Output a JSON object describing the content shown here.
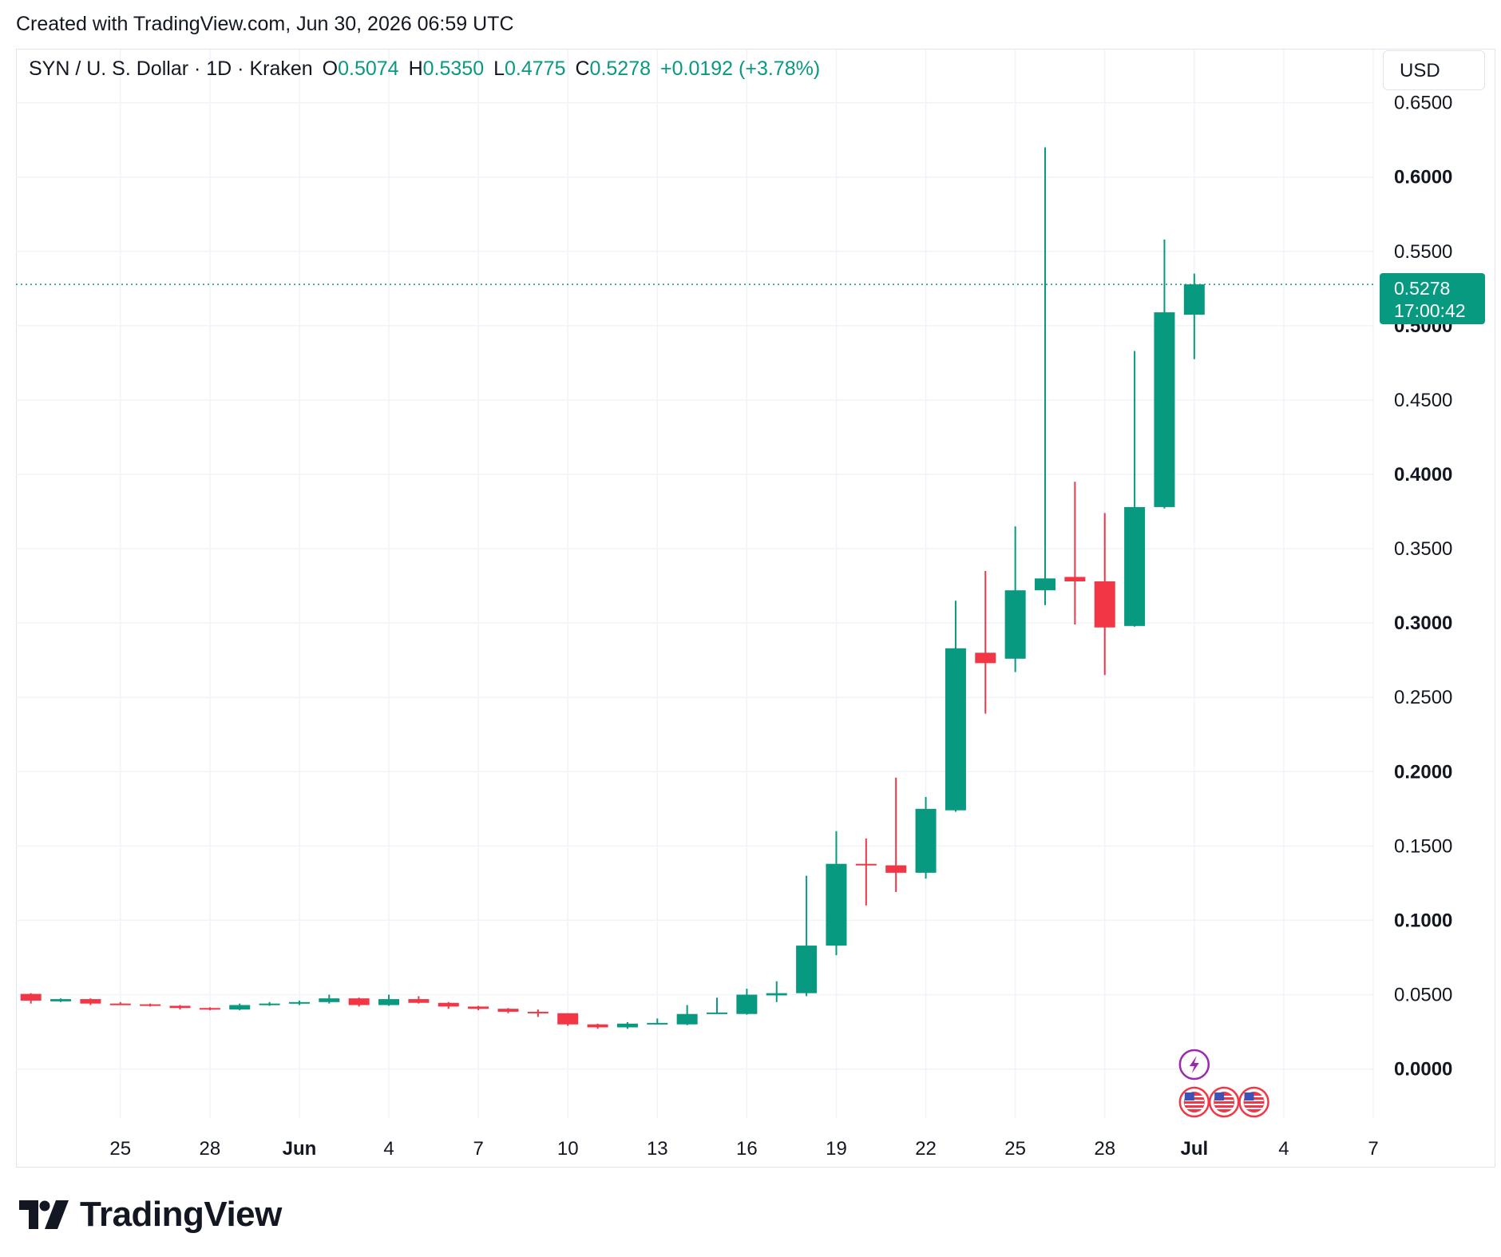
{
  "header": {
    "credit": "Created with TradingView.com, Jun 30, 2026 06:59 UTC"
  },
  "legend": {
    "symbol": "SYN / U. S. Dollar · 1D · Kraken",
    "open_label": "O",
    "open": "0.5074",
    "high_label": "H",
    "high": "0.5350",
    "low_label": "L",
    "low": "0.4775",
    "close_label": "C",
    "close": "0.5278",
    "change": "+0.0192 (+3.78%)"
  },
  "currency_button": {
    "label": "USD"
  },
  "price_tag": {
    "price": "0.5278",
    "countdown": "17:00:42"
  },
  "logo": {
    "text": "TradingView"
  },
  "colors": {
    "up": "#089981",
    "down": "#f23645",
    "grid": "#f0f3fa",
    "text": "#131722"
  },
  "chart_data": {
    "type": "candlestick",
    "x_axis": {
      "ticks": [
        {
          "day": 25,
          "label": "25",
          "bold": false
        },
        {
          "day": 28,
          "label": "28",
          "bold": false
        },
        {
          "day": 31,
          "label": "Jun",
          "bold": true
        },
        {
          "day": 34,
          "label": "4",
          "bold": false
        },
        {
          "day": 37,
          "label": "7",
          "bold": false
        },
        {
          "day": 40,
          "label": "10",
          "bold": false
        },
        {
          "day": 43,
          "label": "13",
          "bold": false
        },
        {
          "day": 46,
          "label": "16",
          "bold": false
        },
        {
          "day": 49,
          "label": "19",
          "bold": false
        },
        {
          "day": 52,
          "label": "22",
          "bold": false
        },
        {
          "day": 55,
          "label": "25",
          "bold": false
        },
        {
          "day": 58,
          "label": "28",
          "bold": false
        },
        {
          "day": 61,
          "label": "Jul",
          "bold": true
        },
        {
          "day": 64,
          "label": "4",
          "bold": false
        },
        {
          "day": 67,
          "label": "7",
          "bold": false
        }
      ],
      "range": [
        21.5,
        67
      ]
    },
    "y_axis": {
      "ticks": [
        {
          "value": 0.65,
          "label": "0.6500",
          "bold": false
        },
        {
          "value": 0.6,
          "label": "0.6000",
          "bold": true
        },
        {
          "value": 0.55,
          "label": "0.5500",
          "bold": false
        },
        {
          "value": 0.5,
          "label": "0.5000",
          "bold": true
        },
        {
          "value": 0.45,
          "label": "0.4500",
          "bold": false
        },
        {
          "value": 0.4,
          "label": "0.4000",
          "bold": true
        },
        {
          "value": 0.35,
          "label": "0.3500",
          "bold": false
        },
        {
          "value": 0.3,
          "label": "0.3000",
          "bold": true
        },
        {
          "value": 0.25,
          "label": "0.2500",
          "bold": false
        },
        {
          "value": 0.2,
          "label": "0.2000",
          "bold": true
        },
        {
          "value": 0.15,
          "label": "0.1500",
          "bold": false
        },
        {
          "value": 0.1,
          "label": "0.1000",
          "bold": true
        },
        {
          "value": 0.05,
          "label": "0.0500",
          "bold": false
        },
        {
          "value": 0.0,
          "label": "0.0000",
          "bold": true
        }
      ],
      "range": [
        -0.033,
        0.66
      ]
    },
    "grid": true,
    "last_price": 0.5278,
    "candles": [
      {
        "day": 22,
        "o": 0.0505,
        "h": 0.051,
        "l": 0.044,
        "c": 0.046
      },
      {
        "day": 23,
        "o": 0.0455,
        "h": 0.0475,
        "l": 0.045,
        "c": 0.047
      },
      {
        "day": 24,
        "o": 0.047,
        "h": 0.0475,
        "l": 0.043,
        "c": 0.044
      },
      {
        "day": 25,
        "o": 0.044,
        "h": 0.045,
        "l": 0.043,
        "c": 0.0435
      },
      {
        "day": 26,
        "o": 0.0435,
        "h": 0.044,
        "l": 0.042,
        "c": 0.0425
      },
      {
        "day": 27,
        "o": 0.0425,
        "h": 0.043,
        "l": 0.04,
        "c": 0.041
      },
      {
        "day": 28,
        "o": 0.041,
        "h": 0.0415,
        "l": 0.0395,
        "c": 0.04
      },
      {
        "day": 29,
        "o": 0.04,
        "h": 0.044,
        "l": 0.0395,
        "c": 0.043
      },
      {
        "day": 30,
        "o": 0.043,
        "h": 0.045,
        "l": 0.0425,
        "c": 0.044
      },
      {
        "day": 31,
        "o": 0.044,
        "h": 0.046,
        "l": 0.043,
        "c": 0.045
      },
      {
        "day": 32,
        "o": 0.045,
        "h": 0.05,
        "l": 0.044,
        "c": 0.0475
      },
      {
        "day": 33,
        "o": 0.0475,
        "h": 0.048,
        "l": 0.042,
        "c": 0.043
      },
      {
        "day": 34,
        "o": 0.043,
        "h": 0.05,
        "l": 0.0425,
        "c": 0.047
      },
      {
        "day": 35,
        "o": 0.047,
        "h": 0.049,
        "l": 0.044,
        "c": 0.0445
      },
      {
        "day": 36,
        "o": 0.0445,
        "h": 0.045,
        "l": 0.0405,
        "c": 0.042
      },
      {
        "day": 37,
        "o": 0.042,
        "h": 0.0425,
        "l": 0.0395,
        "c": 0.0405
      },
      {
        "day": 38,
        "o": 0.0405,
        "h": 0.041,
        "l": 0.0375,
        "c": 0.0385
      },
      {
        "day": 39,
        "o": 0.0385,
        "h": 0.04,
        "l": 0.035,
        "c": 0.0375
      },
      {
        "day": 40,
        "o": 0.0375,
        "h": 0.0375,
        "l": 0.029,
        "c": 0.03
      },
      {
        "day": 41,
        "o": 0.03,
        "h": 0.0305,
        "l": 0.027,
        "c": 0.028
      },
      {
        "day": 42,
        "o": 0.028,
        "h": 0.0315,
        "l": 0.027,
        "c": 0.0305
      },
      {
        "day": 43,
        "o": 0.0305,
        "h": 0.034,
        "l": 0.03,
        "c": 0.031
      },
      {
        "day": 44,
        "o": 0.03,
        "h": 0.043,
        "l": 0.0295,
        "c": 0.037
      },
      {
        "day": 45,
        "o": 0.0375,
        "h": 0.048,
        "l": 0.037,
        "c": 0.038
      },
      {
        "day": 46,
        "o": 0.037,
        "h": 0.054,
        "l": 0.0365,
        "c": 0.05
      },
      {
        "day": 47,
        "o": 0.0495,
        "h": 0.059,
        "l": 0.045,
        "c": 0.051
      },
      {
        "day": 48,
        "o": 0.051,
        "h": 0.13,
        "l": 0.049,
        "c": 0.083
      },
      {
        "day": 49,
        "o": 0.083,
        "h": 0.16,
        "l": 0.0765,
        "c": 0.138
      },
      {
        "day": 50,
        "o": 0.138,
        "h": 0.155,
        "l": 0.11,
        "c": 0.137
      },
      {
        "day": 51,
        "o": 0.137,
        "h": 0.196,
        "l": 0.119,
        "c": 0.132
      },
      {
        "day": 52,
        "o": 0.132,
        "h": 0.183,
        "l": 0.128,
        "c": 0.175
      },
      {
        "day": 53,
        "o": 0.174,
        "h": 0.315,
        "l": 0.173,
        "c": 0.283
      },
      {
        "day": 54,
        "o": 0.28,
        "h": 0.335,
        "l": 0.239,
        "c": 0.273
      },
      {
        "day": 55,
        "o": 0.276,
        "h": 0.365,
        "l": 0.267,
        "c": 0.322
      },
      {
        "day": 56,
        "o": 0.322,
        "h": 0.62,
        "l": 0.312,
        "c": 0.33
      },
      {
        "day": 57,
        "o": 0.331,
        "h": 0.395,
        "l": 0.299,
        "c": 0.328
      },
      {
        "day": 58,
        "o": 0.328,
        "h": 0.374,
        "l": 0.265,
        "c": 0.297
      },
      {
        "day": 59,
        "o": 0.298,
        "h": 0.483,
        "l": 0.2975,
        "c": 0.378
      },
      {
        "day": 60,
        "o": 0.378,
        "h": 0.558,
        "l": 0.377,
        "c": 0.509
      },
      {
        "day": 61,
        "o": 0.5074,
        "h": 0.535,
        "l": 0.4775,
        "c": 0.5278
      }
    ],
    "event_markers": [
      {
        "day": 61,
        "kind": "lightning-event-icon",
        "row": 1
      },
      {
        "day": 61,
        "kind": "us-flag-icon",
        "row": 2
      },
      {
        "day": 62,
        "kind": "us-flag-icon",
        "row": 2
      },
      {
        "day": 63,
        "kind": "us-flag-icon",
        "row": 2
      }
    ]
  }
}
